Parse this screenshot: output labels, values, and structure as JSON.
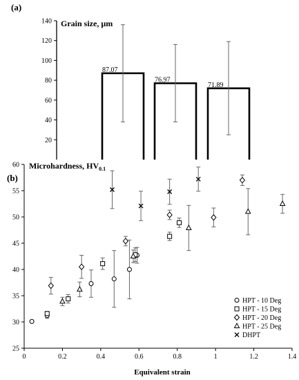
{
  "chart_data": [
    {
      "panel": "(a)",
      "type": "bar",
      "title": "Grain size, µm",
      "categories": [
        "",
        "",
        ""
      ],
      "values": [
        87.07,
        76.97,
        71.89
      ],
      "data_labels": [
        "87.07",
        "76.97",
        "71.89"
      ],
      "error_low": [
        38,
        38,
        25
      ],
      "error_high": [
        136,
        116,
        119
      ],
      "ylim": [
        0,
        140
      ],
      "yticks": [
        "20",
        "40",
        "60",
        "80",
        "100",
        "120",
        "140"
      ],
      "grid": false
    },
    {
      "panel": "(b)",
      "type": "scatter",
      "title": "Microhardness, HV",
      "title_sub": "0.1",
      "xlabel": "Equivalent strain",
      "xlim": [
        0,
        1.4
      ],
      "ylim": [
        25,
        60
      ],
      "xticks": [
        "0",
        "0.2",
        "0.4",
        "0.6",
        "0.8",
        "1",
        "1.2",
        "1.4"
      ],
      "yticks": [
        "25",
        "30",
        "35",
        "40",
        "45",
        "50",
        "55",
        "60"
      ],
      "legend_position": "bottom-right",
      "grid": false,
      "series": [
        {
          "name": "HPT - 10 Deg",
          "marker": "circle",
          "points": [
            {
              "x": 0.04,
              "y": 30.1,
              "err": 0.2
            },
            {
              "x": 0.12,
              "y": 31.2,
              "err": 0.5
            },
            {
              "x": 0.35,
              "y": 37.3,
              "err": 2.6
            },
            {
              "x": 0.47,
              "y": 38.2,
              "err": 5.4
            },
            {
              "x": 0.55,
              "y": 40.0,
              "err": 5.6
            },
            {
              "x": 0.59,
              "y": 42.7,
              "err": 1.5
            }
          ]
        },
        {
          "name": "HPT - 15 Deg",
          "marker": "square",
          "points": [
            {
              "x": 0.12,
              "y": 31.6,
              "err": 0.4
            },
            {
              "x": 0.23,
              "y": 34.4,
              "err": 0.8
            },
            {
              "x": 0.41,
              "y": 41.1,
              "err": 1.1
            },
            {
              "x": 0.58,
              "y": 42.8,
              "err": 1.3
            },
            {
              "x": 0.76,
              "y": 46.3,
              "err": 0.8
            },
            {
              "x": 0.81,
              "y": 48.9,
              "err": 0.9
            }
          ]
        },
        {
          "name": "HPT - 20 Deg",
          "marker": "diamond",
          "points": [
            {
              "x": 0.14,
              "y": 36.9,
              "err": 1.6
            },
            {
              "x": 0.3,
              "y": 40.5,
              "err": 2.2
            },
            {
              "x": 0.53,
              "y": 45.4,
              "err": 0.9
            },
            {
              "x": 0.76,
              "y": 50.4,
              "err": 0.9
            },
            {
              "x": 0.99,
              "y": 49.9,
              "err": 1.8
            },
            {
              "x": 1.14,
              "y": 57.0,
              "err": 1.0
            }
          ]
        },
        {
          "name": "HPT - 25 Deg",
          "marker": "triangle",
          "points": [
            {
              "x": 0.2,
              "y": 33.9,
              "err": 0.8
            },
            {
              "x": 0.29,
              "y": 36.2,
              "err": 1.4
            },
            {
              "x": 0.57,
              "y": 42.5,
              "err": 1.2
            },
            {
              "x": 0.86,
              "y": 47.9,
              "err": 4.3
            },
            {
              "x": 1.17,
              "y": 51.0,
              "err": 4.4
            },
            {
              "x": 1.35,
              "y": 52.5,
              "err": 1.8
            }
          ]
        },
        {
          "name": "DHPT",
          "marker": "x",
          "points": [
            {
              "x": 0.46,
              "y": 55.2,
              "err": 3.6
            },
            {
              "x": 0.61,
              "y": 52.1,
              "err": 2.8
            },
            {
              "x": 0.76,
              "y": 54.8,
              "err": 2.4
            },
            {
              "x": 0.91,
              "y": 57.2,
              "err": 2.3
            }
          ]
        }
      ]
    }
  ]
}
